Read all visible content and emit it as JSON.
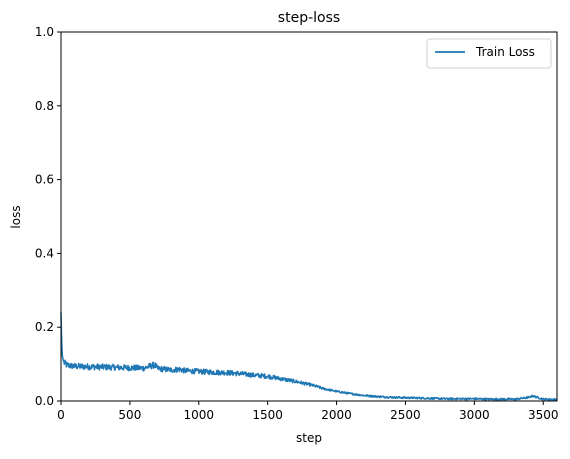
{
  "chart_data": {
    "type": "line",
    "title": "step-loss",
    "xlabel": "step",
    "ylabel": "loss",
    "xlim": [
      0,
      3600
    ],
    "ylim": [
      0.0,
      1.0
    ],
    "xticks": [
      0,
      500,
      1000,
      1500,
      2000,
      2500,
      3000,
      3500
    ],
    "xtick_labels": [
      "0",
      "500",
      "1000",
      "1500",
      "2000",
      "2500",
      "3000",
      "3500"
    ],
    "yticks": [
      0.0,
      0.2,
      0.4,
      0.6,
      0.8,
      1.0
    ],
    "ytick_labels": [
      "0.0",
      "0.2",
      "0.4",
      "0.6",
      "0.8",
      "1.0"
    ],
    "grid": false,
    "legend": {
      "placement": "top-right",
      "entries": [
        "Train Loss"
      ]
    },
    "series": [
      {
        "name": "Train Loss",
        "color": "#1f77b4",
        "x": [
          0,
          5,
          10,
          20,
          40,
          60,
          100,
          200,
          300,
          400,
          500,
          600,
          680,
          700,
          800,
          860,
          900,
          1000,
          1100,
          1200,
          1300,
          1400,
          1500,
          1600,
          1700,
          1800,
          1850,
          1900,
          2000,
          2100,
          2200,
          2300,
          2400,
          2500,
          2600,
          2700,
          2800,
          2900,
          3000,
          3100,
          3200,
          3300,
          3400,
          3420,
          3500,
          3600
        ],
        "y": [
          0.24,
          0.16,
          0.12,
          0.105,
          0.098,
          0.096,
          0.094,
          0.093,
          0.092,
          0.091,
          0.09,
          0.089,
          0.098,
          0.088,
          0.084,
          0.086,
          0.082,
          0.08,
          0.078,
          0.077,
          0.074,
          0.07,
          0.067,
          0.06,
          0.053,
          0.045,
          0.04,
          0.034,
          0.026,
          0.02,
          0.015,
          0.012,
          0.01,
          0.009,
          0.008,
          0.007,
          0.006,
          0.006,
          0.006,
          0.005,
          0.005,
          0.005,
          0.01,
          0.014,
          0.005,
          0.004
        ]
      }
    ]
  }
}
